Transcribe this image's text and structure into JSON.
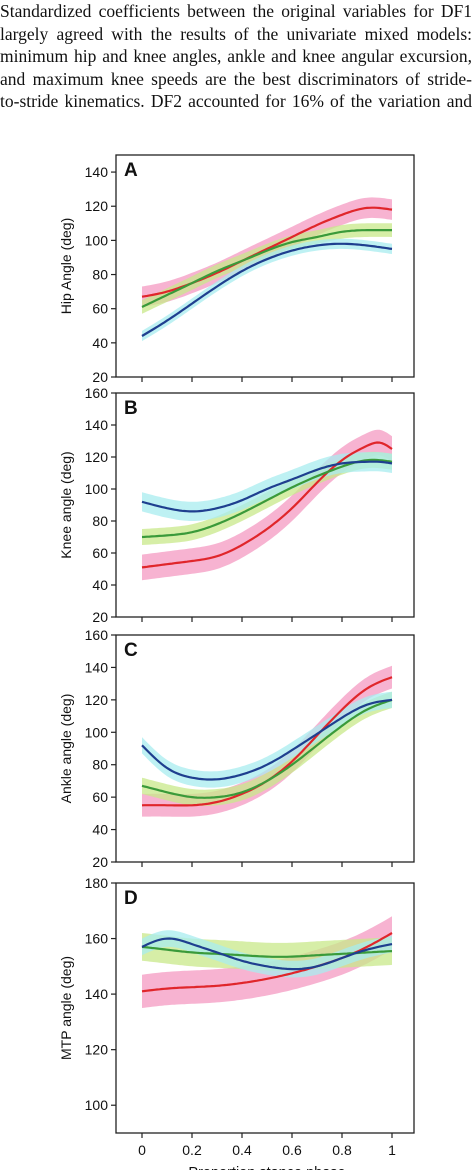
{
  "paragraph": {
    "lines": [
      "Standardized coefficients between the original variables for DF1",
      "largely agreed with the results of the univariate mixed models:",
      "minimum hip and knee angles, ankle and knee angular excursion,",
      "and maximum knee speeds are the best discriminators of stride-",
      "to-stride kinematics. DF2 accounted for 16% of the variation and"
    ]
  },
  "colors": {
    "red_line": "#e0262b",
    "red_band": "#f49ac1",
    "green_line": "#3a9a3a",
    "green_band": "#c8e88a",
    "blue_line": "#1f3f8f",
    "blue_band": "#a8ecef",
    "axis": "#222222"
  },
  "chart_data": [
    {
      "type": "line",
      "panel": "A",
      "ylabel": "Hip Angle (deg)",
      "ylim": [
        20,
        150
      ],
      "yticks": [
        20,
        40,
        60,
        80,
        100,
        120,
        140
      ],
      "x": [
        0,
        0.1,
        0.2,
        0.3,
        0.4,
        0.5,
        0.6,
        0.7,
        0.8,
        0.9,
        1.0
      ],
      "series": [
        {
          "color": "red",
          "values": [
            67,
            70,
            75,
            81,
            88,
            95,
            102,
            109,
            115,
            119,
            118
          ],
          "band": 6
        },
        {
          "color": "green",
          "values": [
            61,
            68,
            75,
            82,
            88,
            94,
            99,
            102,
            105,
            106,
            106
          ],
          "band": 4
        },
        {
          "color": "blue",
          "values": [
            44,
            53,
            63,
            73,
            82,
            89,
            94,
            97,
            98,
            97,
            95
          ],
          "band": 3
        }
      ]
    },
    {
      "type": "line",
      "panel": "B",
      "ylabel": "Knee angle (deg)",
      "ylim": [
        20,
        160
      ],
      "yticks": [
        20,
        40,
        60,
        80,
        100,
        120,
        140,
        160
      ],
      "x": [
        0,
        0.1,
        0.2,
        0.3,
        0.4,
        0.5,
        0.6,
        0.7,
        0.8,
        0.9,
        0.95,
        1.0
      ],
      "series": [
        {
          "color": "red",
          "values": [
            51,
            53,
            55,
            58,
            65,
            75,
            88,
            104,
            118,
            127,
            129,
            125
          ],
          "band": 8
        },
        {
          "color": "green",
          "values": [
            70,
            71,
            73,
            78,
            85,
            93,
            101,
            108,
            114,
            118,
            118,
            117
          ],
          "band": 5
        },
        {
          "color": "blue",
          "values": [
            92,
            88,
            86,
            88,
            93,
            100,
            106,
            112,
            116,
            117,
            117,
            116
          ],
          "band": 6
        }
      ]
    },
    {
      "type": "line",
      "panel": "C",
      "ylabel": "Ankle angle (deg)",
      "ylim": [
        20,
        160
      ],
      "yticks": [
        20,
        40,
        60,
        80,
        100,
        120,
        140,
        160
      ],
      "x": [
        0,
        0.1,
        0.2,
        0.3,
        0.4,
        0.5,
        0.6,
        0.7,
        0.8,
        0.9,
        1.0
      ],
      "series": [
        {
          "color": "red",
          "values": [
            55,
            55,
            55,
            57,
            62,
            70,
            82,
            98,
            114,
            127,
            134
          ],
          "band": 7
        },
        {
          "color": "green",
          "values": [
            67,
            63,
            60,
            60,
            63,
            70,
            80,
            92,
            104,
            114,
            120
          ],
          "band": 5
        },
        {
          "color": "blue",
          "values": [
            92,
            78,
            72,
            71,
            74,
            80,
            89,
            99,
            109,
            117,
            120
          ],
          "band": 5
        }
      ]
    },
    {
      "type": "line",
      "panel": "D",
      "ylabel": "MTP angle (deg)",
      "xlabel": "Proportion stance phase",
      "ylim": [
        90,
        180
      ],
      "yticks": [
        100,
        120,
        140,
        160,
        180
      ],
      "x": [
        0,
        0.1,
        0.2,
        0.3,
        0.4,
        0.5,
        0.6,
        0.7,
        0.8,
        0.9,
        1.0
      ],
      "xticks": [
        0,
        0.2,
        0.4,
        0.6,
        0.8,
        1
      ],
      "xtick_labels": [
        "0",
        "0.2",
        "0.4",
        "0.6",
        "0.8",
        "1"
      ],
      "series": [
        {
          "color": "red",
          "values": [
            141,
            142,
            142.5,
            143,
            144,
            145.5,
            147.5,
            150,
            153,
            157,
            162
          ],
          "band": 6
        },
        {
          "color": "green",
          "values": [
            157,
            156,
            155,
            154.5,
            154,
            153.5,
            153.5,
            154,
            154.5,
            155,
            155.5
          ],
          "band": 5
        },
        {
          "color": "blue",
          "values": [
            157,
            160,
            158,
            155,
            152,
            150,
            149,
            150,
            153,
            156,
            158
          ],
          "band": 3
        }
      ]
    }
  ]
}
